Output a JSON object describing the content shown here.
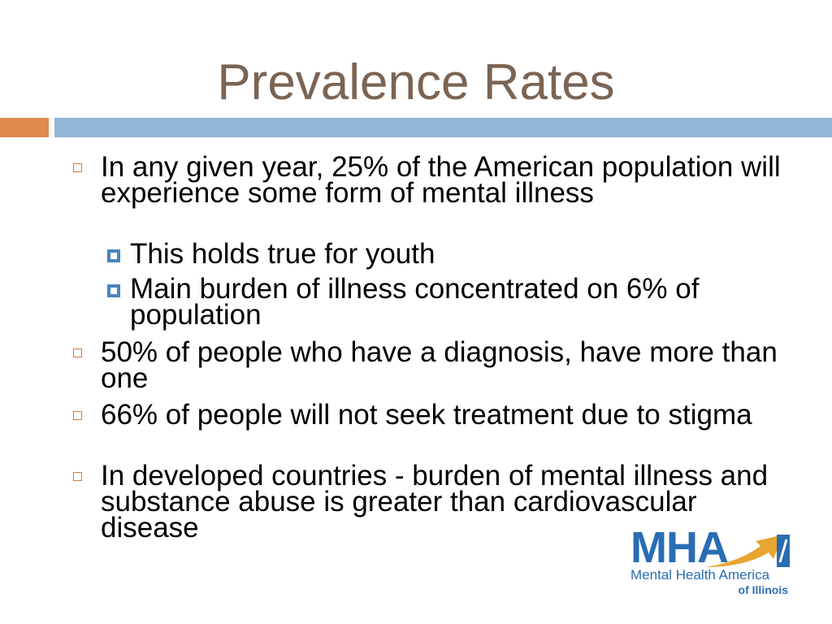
{
  "slide": {
    "title": "Prevalence Rates",
    "bullets": [
      {
        "text": "In any given year, 25% of the American population will experience some form of mental illness",
        "sub_bullets": [
          "This holds true for youth",
          "Main burden of illness concentrated on 6% of population"
        ]
      },
      {
        "text": "50% of people who have a diagnosis, have more than one"
      },
      {
        "text": "66% of people will not seek treatment due to stigma"
      },
      {
        "text": "In developed countries - burden of mental illness and substance abuse is greater than cardiovascular disease"
      }
    ]
  },
  "logo": {
    "letters": "MHA",
    "line1": "Mental Health America",
    "line2": "of Illinois"
  },
  "colors": {
    "title": "#7b6453",
    "accent_orange": "#e08a4f",
    "accent_blue": "#92b6d5",
    "bullet_marker": "#d8793a",
    "sub_bullet_marker": "#4a85bd",
    "logo_blue": "#2a6db3",
    "logo_gold": "#e8a531"
  },
  "icons": {
    "bullet": "hollow-square-icon",
    "sub_bullet": "filled-square-icon"
  }
}
